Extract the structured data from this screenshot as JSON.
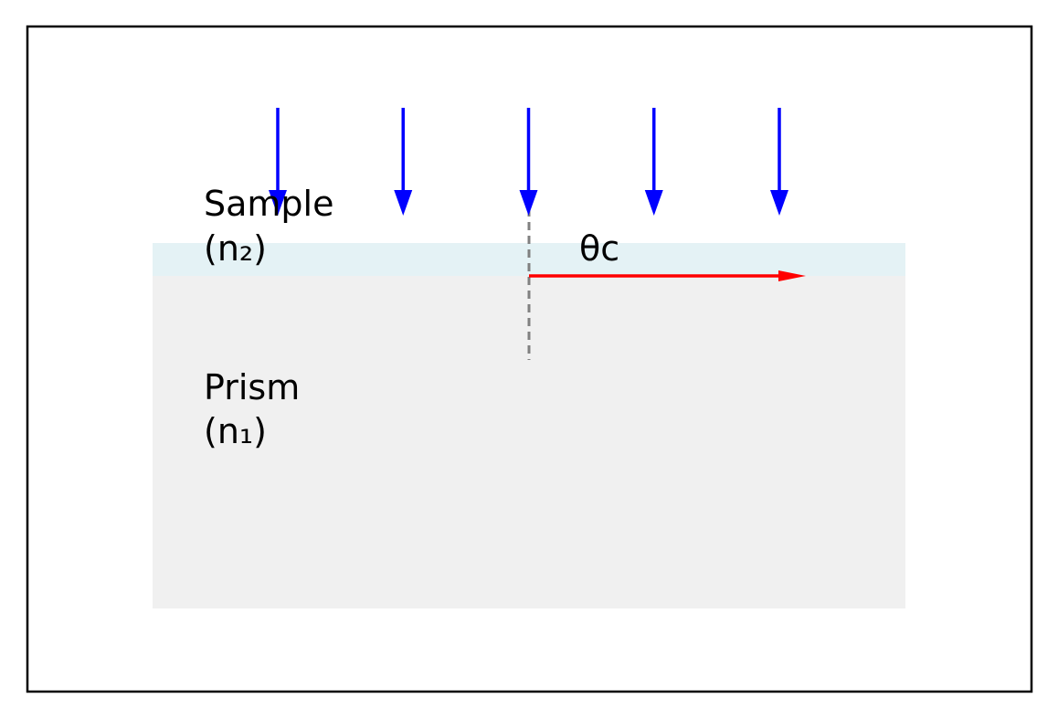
{
  "diagram": {
    "labels": {
      "sample_name": "Sample",
      "sample_index": "(n₂)",
      "prism_name": "Prism",
      "prism_index": "(n₁)",
      "critical_angle": "θc"
    },
    "incident_arrow_count": 5,
    "colors": {
      "frame": "#000000",
      "sample_layer": "#e4f2f5",
      "prism": "#f0f0f0",
      "incident_arrows": "#0000ff",
      "refracted_ray": "#ff0000",
      "normal_line": "#808080"
    }
  }
}
